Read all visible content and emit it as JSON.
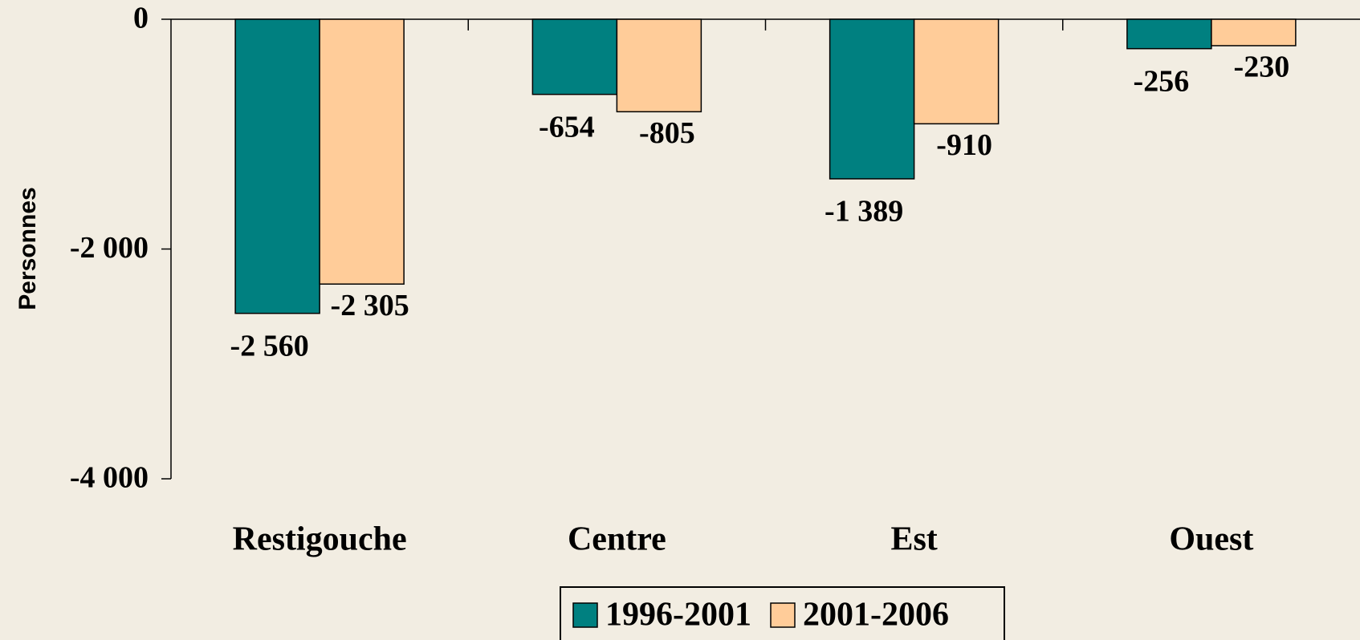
{
  "chart_data": {
    "type": "bar",
    "y_label": "Personnes",
    "categories": [
      "Restigouche",
      "Centre",
      "Est",
      "Ouest"
    ],
    "series": [
      {
        "name": "1996-2001",
        "color": "#008080",
        "values": [
          -2560,
          -654,
          -1389,
          -256
        ],
        "value_labels": [
          "-2 560",
          "-654",
          "-1 389",
          "-256"
        ]
      },
      {
        "name": "2001-2006",
        "color": "#ffcc99",
        "values": [
          -2305,
          -805,
          -910,
          -230
        ],
        "value_labels": [
          "-2 305",
          "-805",
          "-910",
          "-230"
        ]
      }
    ],
    "ylim": [
      -4000,
      0
    ],
    "yticks": [
      {
        "value": -4000,
        "label": "-4 000"
      },
      {
        "value": -2000,
        "label": "-2 000"
      },
      0
    ],
    "legend": "bottom"
  }
}
